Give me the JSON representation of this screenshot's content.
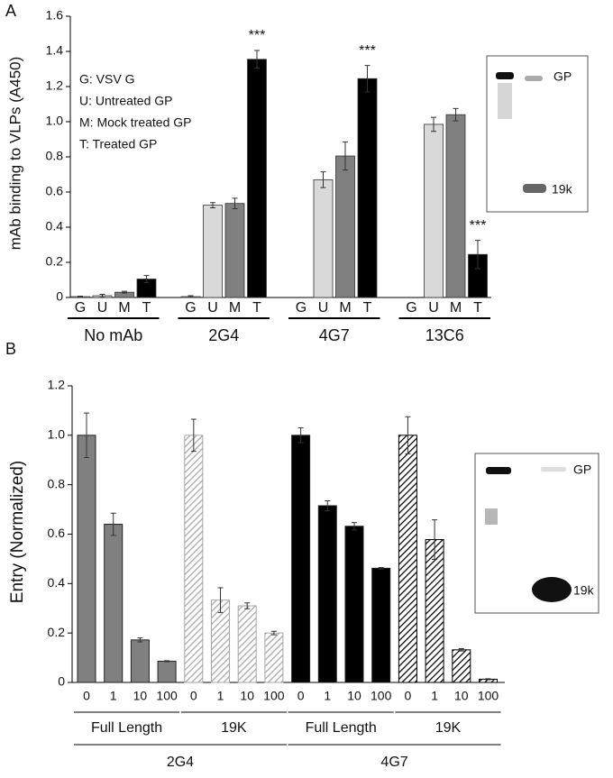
{
  "chart_data": [
    {
      "type": "grouped-bar",
      "panel_label": "A",
      "y_label": "mAb binding to VLPs (A450)",
      "ylim": [
        0,
        1.6
      ],
      "yticks": [
        0,
        0.2,
        0.4,
        0.6,
        0.8,
        {
          "value": 1,
          "label": "1.0"
        },
        1.2,
        1.4,
        1.6
      ],
      "groups": [
        "No mAb",
        "2G4",
        "4G7",
        "13C6"
      ],
      "series": [
        {
          "name": "G",
          "color": "#ffffff",
          "values": [
            0.005,
            0.005,
            0,
            0
          ],
          "errors": [
            0.003,
            0.005,
            0,
            0
          ]
        },
        {
          "name": "U",
          "color": "#d9d9d9",
          "values": [
            0.01,
            0.525,
            0.67,
            0.985
          ],
          "errors": [
            0.008,
            0.015,
            0.045,
            0.04
          ]
        },
        {
          "name": "M",
          "color": "#808080",
          "values": [
            0.03,
            0.535,
            0.805,
            1.04
          ],
          "errors": [
            0.005,
            0.03,
            0.08,
            0.035
          ]
        },
        {
          "name": "T",
          "color": "#000000",
          "values": [
            0.105,
            1.355,
            1.245,
            0.245
          ],
          "errors": [
            0.02,
            0.05,
            0.075,
            0.08
          ],
          "significance": [
            null,
            "***",
            "***",
            "***"
          ]
        }
      ],
      "legend_text": [
        "G: VSV G",
        "U: Untreated GP",
        "M: Mock treated GP",
        "T: Treated GP"
      ],
      "inset_labels": [
        "GP",
        "19k"
      ]
    },
    {
      "type": "nested-bar",
      "panel_label": "B",
      "y_label": "Entry (Normalized)",
      "ylim": [
        0,
        1.2
      ],
      "yticks": [
        0,
        0.2,
        0.4,
        0.6,
        0.8,
        {
          "value": 1,
          "label": "1.0"
        },
        1.2
      ],
      "categories": [
        "0",
        "1",
        "10",
        "100"
      ],
      "groups": [
        {
          "name": "2G4",
          "subgroups": [
            {
              "name": "Full Length",
              "color": "#808080",
              "hatched": false,
              "values": [
                1.0,
                0.64,
                0.172,
                0.086
              ],
              "errors": [
                0.09,
                0.045,
                0.008,
                0.002
              ]
            },
            {
              "name": "19K",
              "color": "#a6a6a6",
              "hatched": true,
              "values": [
                1.0,
                0.333,
                0.31,
                0.2
              ],
              "errors": [
                0.065,
                0.05,
                0.012,
                0.007
              ]
            }
          ]
        },
        {
          "name": "4G7",
          "subgroups": [
            {
              "name": "Full Length",
              "color": "#000000",
              "hatched": false,
              "values": [
                1.0,
                0.715,
                0.632,
                0.462
              ],
              "errors": [
                0.03,
                0.02,
                0.015,
                0.003
              ]
            },
            {
              "name": "19K",
              "color": "#000000",
              "hatched": true,
              "values": [
                1.0,
                0.578,
                0.132,
                0.013
              ],
              "errors": [
                0.075,
                0.08,
                0.005,
                0.002
              ]
            }
          ]
        }
      ],
      "inset_labels": [
        "GP",
        "19k"
      ]
    }
  ]
}
